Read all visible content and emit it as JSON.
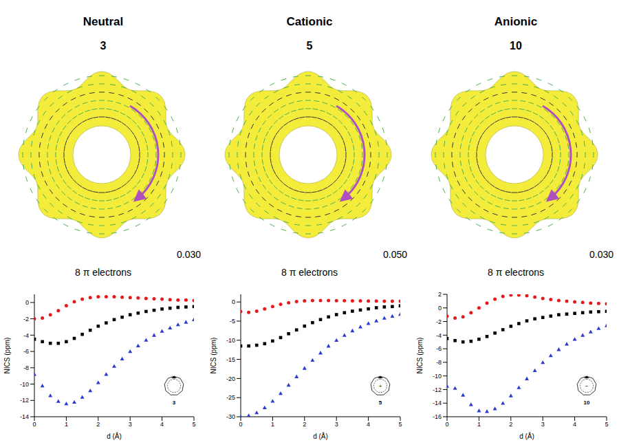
{
  "chart_data": [
    {
      "type": "line",
      "title": "Neutral",
      "subtitle": "3",
      "annotations": [
        "8 π electrons",
        "0.030",
        "3"
      ],
      "x_label": "d (Å)",
      "y_label": "NICS (ppm)",
      "x": [
        0,
        0.25,
        0.5,
        0.75,
        1,
        1.25,
        1.5,
        1.75,
        2,
        2.25,
        2.5,
        2.75,
        3,
        3.25,
        3.5,
        3.75,
        4,
        4.25,
        4.5,
        4.75,
        5
      ],
      "xlim": [
        0,
        5
      ],
      "xticks": [
        0,
        1,
        2,
        3,
        4,
        5
      ],
      "ylim": [
        -14,
        1
      ],
      "yticks": [
        -14,
        -12,
        -10,
        -8,
        -6,
        -4,
        -2,
        0
      ],
      "series": [
        {
          "color": "#e41a1c",
          "marker": "circle",
          "line_style": "none",
          "values": [
            -2,
            -1.9,
            -1.5,
            -1.0,
            -0.4,
            0.1,
            0.4,
            0.6,
            0.7,
            0.7,
            0.7,
            0.65,
            0.6,
            0.55,
            0.5,
            0.45,
            0.4,
            0.35,
            0.3,
            0.3,
            0.25
          ]
        },
        {
          "color": "#000000",
          "marker": "square",
          "line_style": "none",
          "values": [
            -4.5,
            -4.8,
            -5.0,
            -5.0,
            -4.8,
            -4.4,
            -3.9,
            -3.4,
            -2.9,
            -2.5,
            -2.1,
            -1.8,
            -1.5,
            -1.3,
            -1.1,
            -0.95,
            -0.8,
            -0.7,
            -0.6,
            -0.55,
            -0.5
          ]
        },
        {
          "color": "#2b3bd1",
          "marker": "triangle",
          "line_style": "none",
          "values": [
            -8.8,
            -10.2,
            -11.4,
            -12.1,
            -12.4,
            -12.2,
            -11.6,
            -10.8,
            -9.8,
            -8.8,
            -7.8,
            -6.9,
            -6.0,
            -5.3,
            -4.6,
            -4.0,
            -3.5,
            -3.1,
            -2.7,
            -2.4,
            -2.1
          ]
        }
      ]
    },
    {
      "type": "line",
      "title": "Cationic",
      "subtitle": "5",
      "annotations": [
        "8 π electrons",
        "0.050",
        "5",
        "+"
      ],
      "x_label": "d (Å)",
      "y_label": "NICS (ppm)",
      "x": [
        0,
        0.25,
        0.5,
        0.75,
        1,
        1.25,
        1.5,
        1.75,
        2,
        2.25,
        2.5,
        2.75,
        3,
        3.25,
        3.5,
        3.75,
        4,
        4.25,
        4.5,
        4.75,
        5
      ],
      "xlim": [
        0,
        5
      ],
      "xticks": [
        0,
        1,
        2,
        3,
        4,
        5
      ],
      "ylim": [
        -30,
        2
      ],
      "yticks": [
        -30,
        -25,
        -20,
        -15,
        -10,
        -5,
        0
      ],
      "series": [
        {
          "color": "#e41a1c",
          "marker": "circle",
          "line_style": "none",
          "values": [
            -2.5,
            -2.7,
            -2.4,
            -1.8,
            -1.2,
            -0.6,
            -0.2,
            0.1,
            0.3,
            0.4,
            0.4,
            0.4,
            0.35,
            0.33,
            0.3,
            0.28,
            0.26,
            0.24,
            0.22,
            0.21,
            0.2
          ]
        },
        {
          "color": "#000000",
          "marker": "square",
          "line_style": "none",
          "values": [
            -11.5,
            -11.5,
            -11.3,
            -10.9,
            -10.2,
            -9.3,
            -8.3,
            -7.3,
            -6.3,
            -5.4,
            -4.6,
            -3.9,
            -3.3,
            -2.8,
            -2.4,
            -2.1,
            -1.8,
            -1.5,
            -1.3,
            -1.2,
            -1.0
          ]
        },
        {
          "color": "#2b3bd1",
          "marker": "triangle",
          "line_style": "none",
          "values": [
            -30,
            -29.7,
            -28.9,
            -27.6,
            -25.9,
            -23.9,
            -21.7,
            -19.5,
            -17.3,
            -15.2,
            -13.3,
            -11.5,
            -10.0,
            -8.7,
            -7.5,
            -6.5,
            -5.6,
            -4.9,
            -4.2,
            -3.7,
            -3.2
          ]
        }
      ]
    },
    {
      "type": "line",
      "title": "Anionic",
      "subtitle": "10",
      "annotations": [
        "8 π electrons",
        "0.030",
        "10",
        "−"
      ],
      "x_label": "d (Å)",
      "y_label": "NICS (ppm)",
      "x": [
        0,
        0.25,
        0.5,
        0.75,
        1,
        1.25,
        1.5,
        1.75,
        2,
        2.25,
        2.5,
        2.75,
        3,
        3.25,
        3.5,
        3.75,
        4,
        4.25,
        4.5,
        4.75,
        5
      ],
      "xlim": [
        0,
        5
      ],
      "xticks": [
        0,
        1,
        2,
        3,
        4,
        5
      ],
      "ylim": [
        -16,
        2
      ],
      "yticks": [
        -16,
        -14,
        -12,
        -10,
        -8,
        -6,
        -4,
        -2,
        0,
        2
      ],
      "series": [
        {
          "color": "#e41a1c",
          "marker": "circle",
          "line_style": "none",
          "values": [
            -1.2,
            -1.5,
            -1.3,
            -0.7,
            0,
            0.7,
            1.3,
            1.7,
            1.9,
            1.9,
            1.8,
            1.6,
            1.4,
            1.25,
            1.1,
            1.0,
            0.9,
            0.8,
            0.7,
            0.65,
            0.6
          ]
        },
        {
          "color": "#000000",
          "marker": "square",
          "line_style": "none",
          "values": [
            -4.5,
            -4.8,
            -5.0,
            -4.9,
            -4.6,
            -4.2,
            -3.7,
            -3.2,
            -2.7,
            -2.3,
            -1.9,
            -1.6,
            -1.4,
            -1.2,
            -1.0,
            -0.9,
            -0.8,
            -0.7,
            -0.6,
            -0.55,
            -0.5
          ]
        },
        {
          "color": "#2b3bd1",
          "marker": "triangle",
          "line_style": "none",
          "values": [
            -11.5,
            -11.8,
            -12.8,
            -14.2,
            -15.1,
            -15.2,
            -14.8,
            -14.0,
            -12.9,
            -11.7,
            -10.4,
            -9.2,
            -8.0,
            -7.0,
            -6.1,
            -5.3,
            -4.6,
            -4.0,
            -3.5,
            -3.0,
            -2.6
          ]
        }
      ]
    }
  ]
}
